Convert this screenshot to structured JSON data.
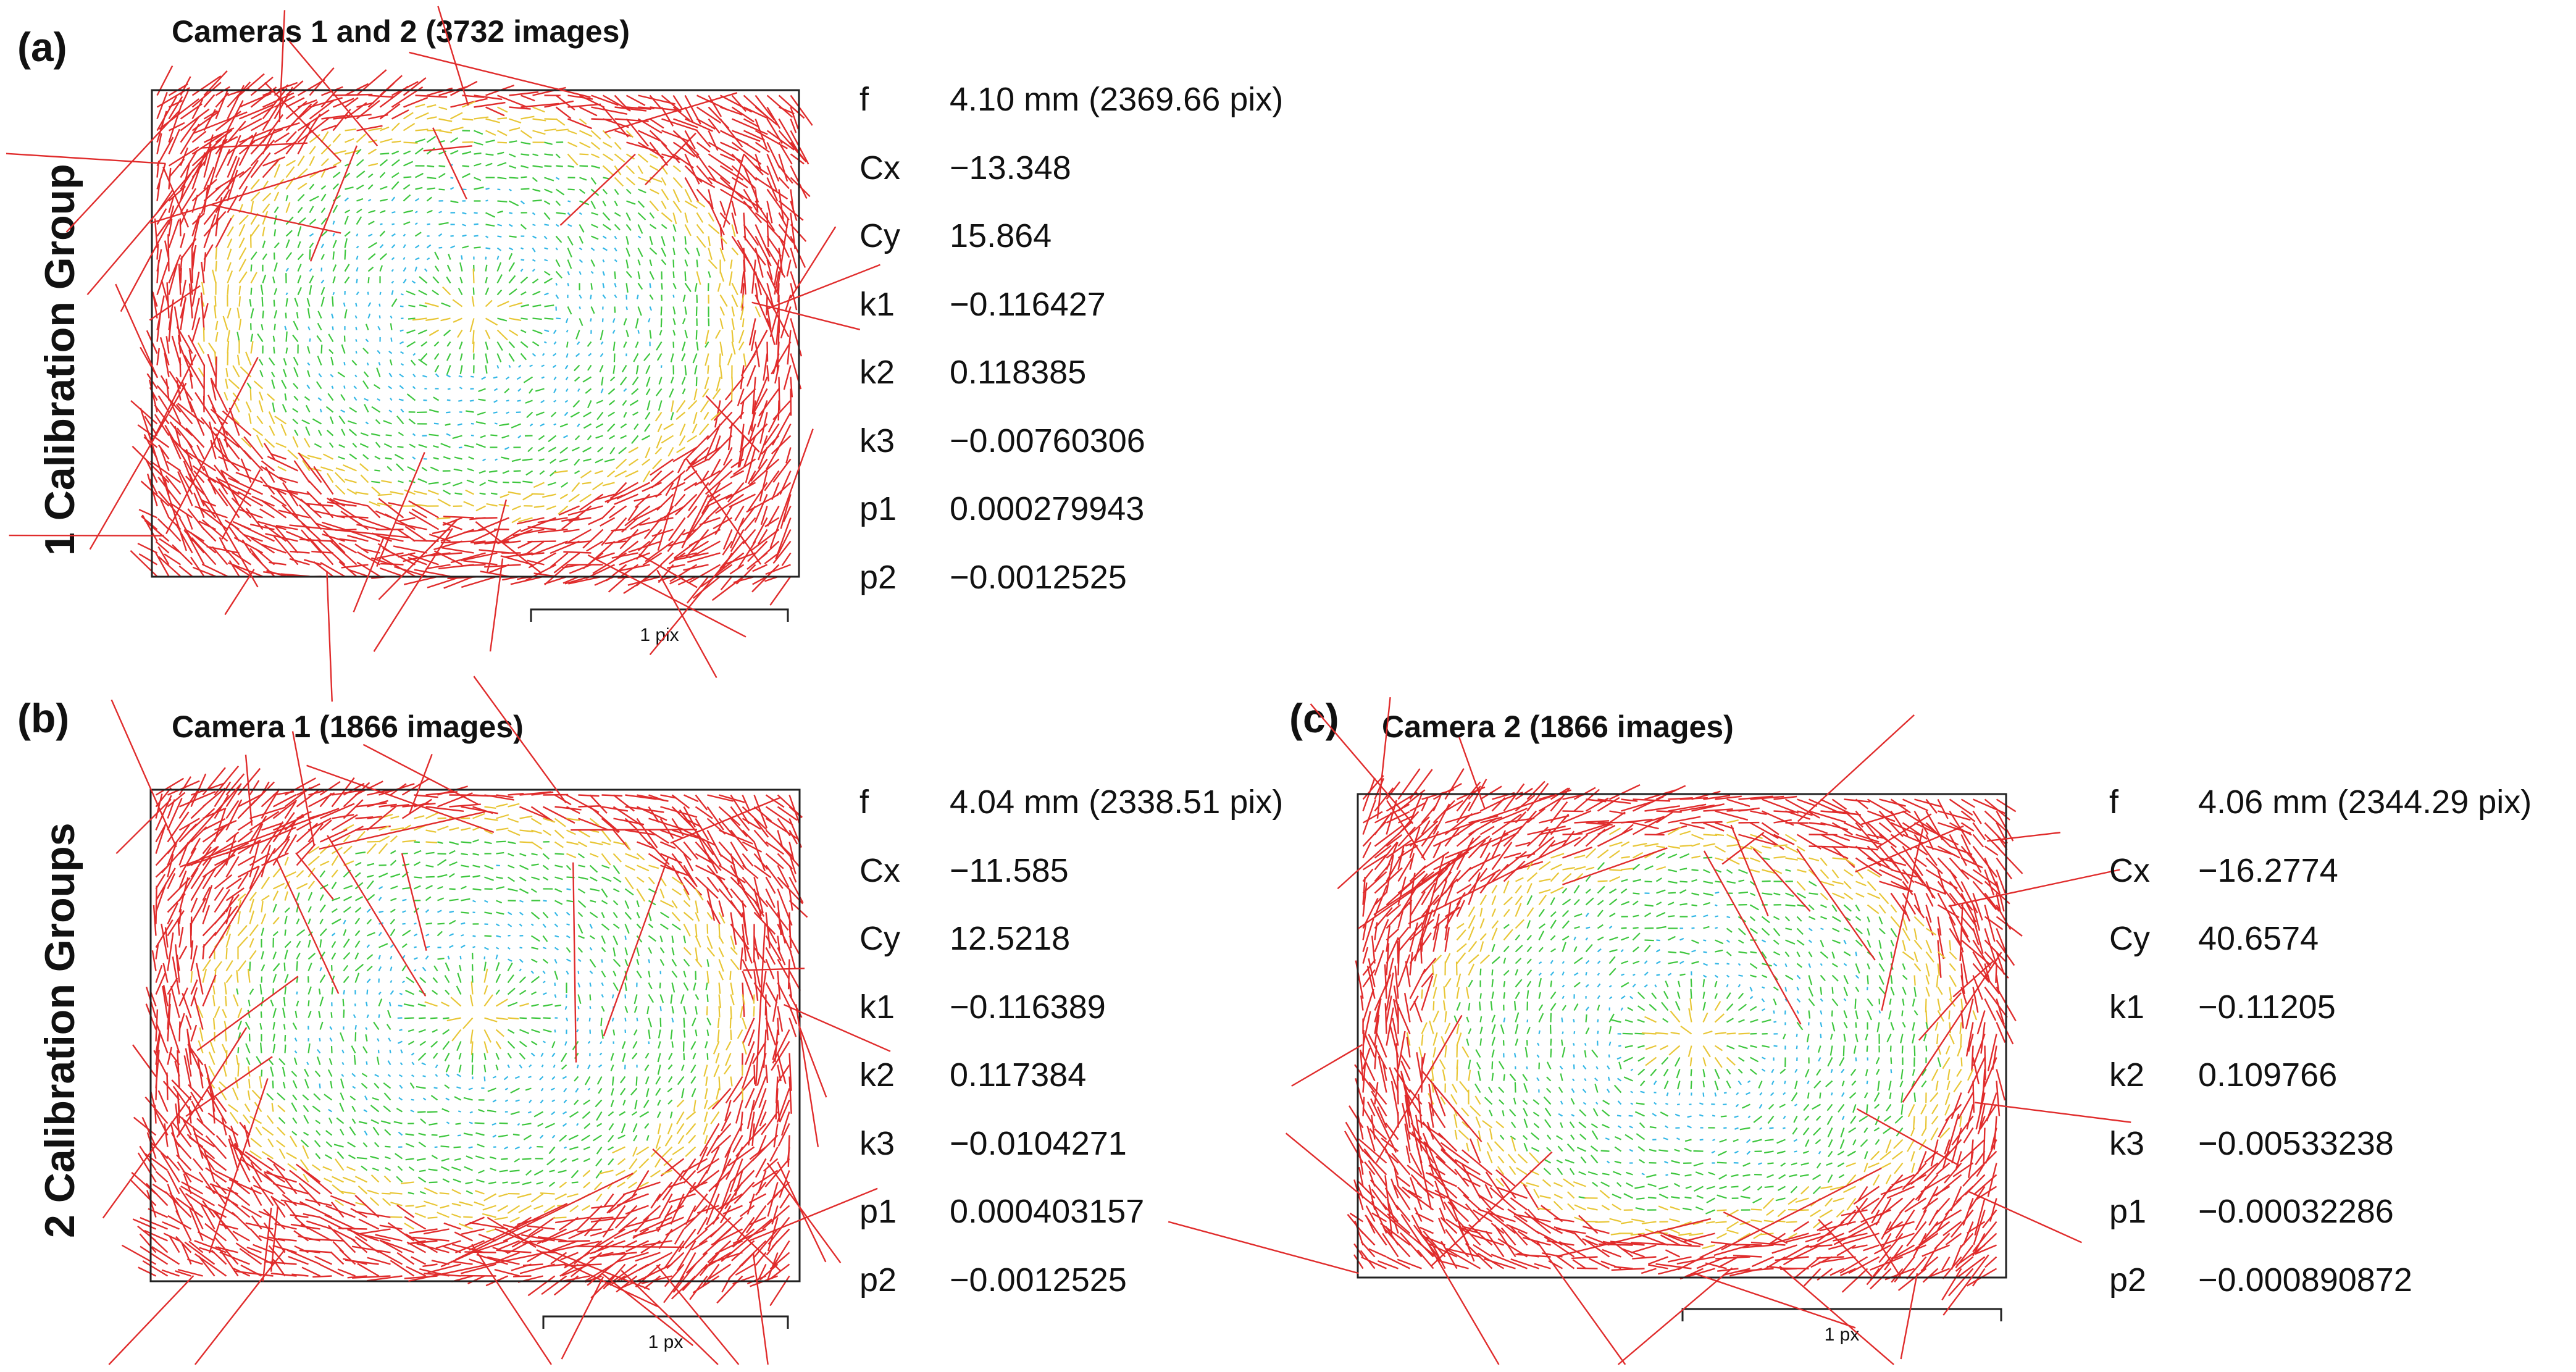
{
  "row_labels": [
    "1 Calibration Group",
    "2 Calibration Groups"
  ],
  "colors": {
    "arrow_small": "#33b7e6",
    "arrow_mid": "#3ec63e",
    "arrow_large": "#e8c636",
    "arrow_outlier": "#e02c2c",
    "frame": "#222222"
  },
  "panels": [
    {
      "label": "(a)",
      "title": "Cameras 1 and 2 (3732 images)",
      "scale_label": "1 pix",
      "params": [
        {
          "name": "f",
          "value": "4.10 mm (2369.66 pix)"
        },
        {
          "name": "Cx",
          "value": "−13.348"
        },
        {
          "name": "Cy",
          "value": "15.864"
        },
        {
          "name": "k1",
          "value": "−0.116427"
        },
        {
          "name": "k2",
          "value": "0.118385"
        },
        {
          "name": "k3",
          "value": "−0.00760306"
        },
        {
          "name": "p1",
          "value": "0.000279943"
        },
        {
          "name": "p2",
          "value": "−0.0012525"
        }
      ]
    },
    {
      "label": "(b)",
      "title": "Camera 1 (1866 images)",
      "scale_label": "1 px",
      "params": [
        {
          "name": "f",
          "value": "4.04 mm (2338.51 pix)"
        },
        {
          "name": "Cx",
          "value": "−11.585"
        },
        {
          "name": "Cy",
          "value": "12.5218"
        },
        {
          "name": "k1",
          "value": "−0.116389"
        },
        {
          "name": "k2",
          "value": "0.117384"
        },
        {
          "name": "k3",
          "value": "−0.0104271"
        },
        {
          "name": "p1",
          "value": "0.000403157"
        },
        {
          "name": "p2",
          "value": "−0.0012525"
        }
      ]
    },
    {
      "label": "(c)",
      "title": "Camera 2 (1866 images)",
      "scale_label": "1 px",
      "params": [
        {
          "name": "f",
          "value": "4.06 mm (2344.29 pix)"
        },
        {
          "name": "Cx",
          "value": "−16.2774"
        },
        {
          "name": "Cy",
          "value": "40.6574"
        },
        {
          "name": "k1",
          "value": "−0.11205"
        },
        {
          "name": "k2",
          "value": "0.109766"
        },
        {
          "name": "k3",
          "value": "−0.00533238"
        },
        {
          "name": "p1",
          "value": "−0.00032286"
        },
        {
          "name": "p2",
          "value": "−0.000890872"
        }
      ]
    }
  ]
}
